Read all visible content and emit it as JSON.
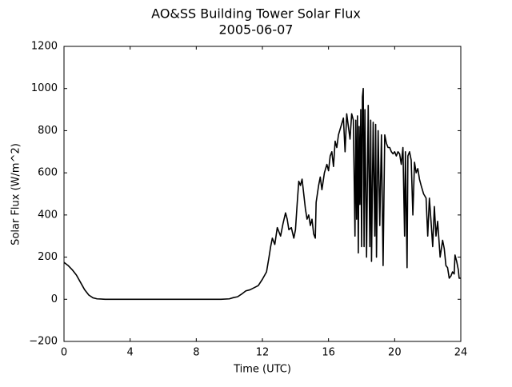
{
  "chart_data": {
    "type": "line",
    "title": "AO&SS Building Tower Solar Flux",
    "subtitle": "2005-06-07",
    "xlabel": "Time (UTC)",
    "ylabel": "Solar Flux (W/m^2)",
    "color": "#000000",
    "xlim": [
      0,
      24
    ],
    "xticks": [
      0,
      4,
      8,
      12,
      16,
      20,
      24
    ],
    "ylim": [
      -200,
      1200
    ],
    "yticks": [
      {
        "value": -200,
        "label": "−200"
      },
      0,
      200,
      400,
      600,
      800,
      1000,
      1200
    ],
    "grid": false,
    "x": [
      0,
      0.25,
      0.5,
      0.75,
      1,
      1.25,
      1.5,
      1.75,
      2,
      2.5,
      3,
      4,
      5,
      6,
      7,
      8,
      9,
      9.5,
      10,
      10.25,
      10.5,
      10.75,
      11,
      11.25,
      11.5,
      11.75,
      12,
      12.25,
      12.4,
      12.5,
      12.6,
      12.75,
      12.9,
      13.1,
      13.25,
      13.4,
      13.5,
      13.6,
      13.75,
      13.9,
      14,
      14.1,
      14.2,
      14.3,
      14.4,
      14.5,
      14.6,
      14.7,
      14.8,
      14.9,
      15,
      15.1,
      15.2,
      15.25,
      15.4,
      15.5,
      15.6,
      15.75,
      15.9,
      16,
      16.1,
      16.2,
      16.3,
      16.4,
      16.5,
      16.6,
      16.75,
      16.9,
      17,
      17.1,
      17.2,
      17.3,
      17.4,
      17.5,
      17.6,
      17.65,
      17.7,
      17.75,
      17.8,
      17.85,
      17.9,
      17.95,
      18,
      18.05,
      18.1,
      18.15,
      18.2,
      18.3,
      18.4,
      18.5,
      18.55,
      18.6,
      18.7,
      18.8,
      18.85,
      18.9,
      19,
      19.1,
      19.2,
      19.3,
      19.4,
      19.5,
      19.6,
      19.7,
      19.8,
      19.9,
      20,
      20.1,
      20.2,
      20.3,
      20.4,
      20.5,
      20.6,
      20.65,
      20.75,
      20.8,
      20.9,
      21,
      21.1,
      21.2,
      21.3,
      21.4,
      21.5,
      21.6,
      21.75,
      21.9,
      22,
      22.1,
      22.2,
      22.3,
      22.4,
      22.5,
      22.6,
      22.75,
      22.9,
      23,
      23.1,
      23.2,
      23.3,
      23.4,
      23.5,
      23.6,
      23.65,
      23.75,
      23.85,
      23.9,
      24
    ],
    "values": [
      175,
      160,
      140,
      115,
      80,
      45,
      20,
      7,
      2,
      0,
      0,
      0,
      0,
      0,
      0,
      0,
      0,
      0,
      2,
      8,
      12,
      25,
      40,
      45,
      55,
      65,
      95,
      130,
      200,
      250,
      290,
      260,
      340,
      300,
      360,
      410,
      380,
      330,
      340,
      290,
      330,
      450,
      560,
      540,
      570,
      500,
      430,
      380,
      400,
      350,
      380,
      310,
      290,
      460,
      540,
      580,
      520,
      600,
      640,
      610,
      680,
      700,
      630,
      750,
      720,
      780,
      820,
      860,
      700,
      880,
      820,
      760,
      880,
      850,
      300,
      850,
      380,
      870,
      220,
      820,
      450,
      900,
      250,
      960,
      1000,
      250,
      900,
      200,
      920,
      250,
      850,
      180,
      840,
      300,
      830,
      200,
      800,
      350,
      780,
      160,
      780,
      740,
      720,
      720,
      700,
      690,
      700,
      680,
      700,
      690,
      640,
      720,
      300,
      700,
      150,
      680,
      700,
      660,
      400,
      650,
      600,
      620,
      570,
      540,
      500,
      480,
      300,
      480,
      370,
      250,
      440,
      300,
      370,
      200,
      280,
      240,
      160,
      150,
      100,
      110,
      130,
      120,
      210,
      180,
      140,
      100,
      100
    ]
  }
}
